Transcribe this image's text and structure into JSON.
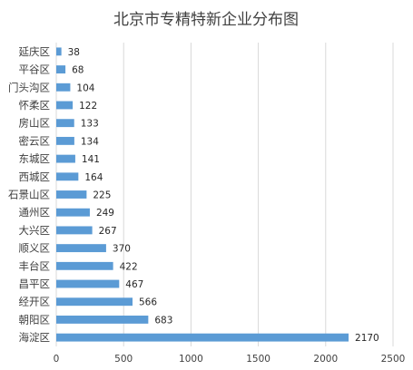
{
  "chart_data": {
    "type": "bar",
    "orientation": "horizontal",
    "title": "北京市专精特新企业分布图",
    "xlabel": "",
    "ylabel": "",
    "categories": [
      "延庆区",
      "平谷区",
      "门头沟区",
      "怀柔区",
      "房山区",
      "密云区",
      "东城区",
      "西城区",
      "石景山区",
      "通州区",
      "大兴区",
      "顺义区",
      "丰台区",
      "昌平区",
      "经开区",
      "朝阳区",
      "海淀区"
    ],
    "values": [
      38,
      68,
      104,
      122,
      133,
      134,
      141,
      164,
      225,
      249,
      267,
      370,
      422,
      467,
      566,
      683,
      2170
    ],
    "xlim": [
      0,
      2500
    ],
    "xticks": [
      0,
      500,
      1000,
      1500,
      2000,
      2500
    ],
    "grid": true,
    "legend": "none",
    "bar_color": "#5b9bd5",
    "data_labels": true
  }
}
